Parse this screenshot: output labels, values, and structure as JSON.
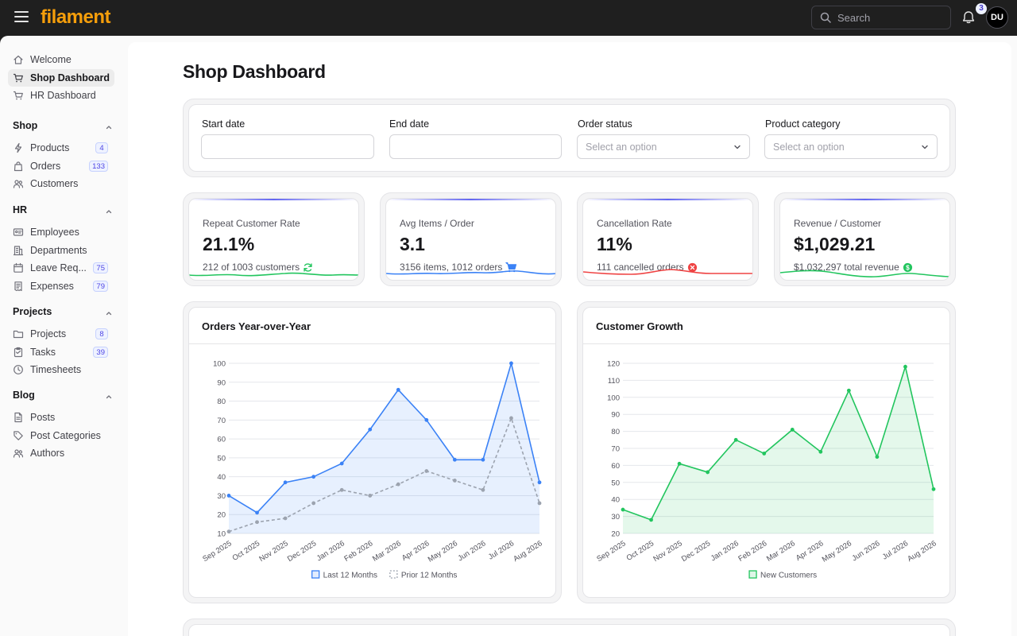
{
  "app": {
    "logo": "filament"
  },
  "topbar": {
    "search_placeholder": "Search",
    "notifications_count": "3",
    "user_initials": "DU"
  },
  "sidebar": {
    "top_items": [
      {
        "label": "Welcome",
        "icon": "home-icon"
      },
      {
        "label": "Shop Dashboard",
        "icon": "cart-icon",
        "active": true
      },
      {
        "label": "HR Dashboard",
        "icon": "cart-icon"
      }
    ],
    "groups": [
      {
        "title": "Shop",
        "items": [
          {
            "label": "Products",
            "icon": "bolt-icon",
            "count": "4"
          },
          {
            "label": "Orders",
            "icon": "bag-icon",
            "count": "133"
          },
          {
            "label": "Customers",
            "icon": "users-icon"
          }
        ]
      },
      {
        "title": "HR",
        "items": [
          {
            "label": "Employees",
            "icon": "id-card-icon"
          },
          {
            "label": "Departments",
            "icon": "building-icon"
          },
          {
            "label": "Leave Req...",
            "icon": "calendar-icon",
            "count": "75"
          },
          {
            "label": "Expenses",
            "icon": "receipt-icon",
            "count": "79"
          }
        ]
      },
      {
        "title": "Projects",
        "items": [
          {
            "label": "Projects",
            "icon": "folder-icon",
            "count": "8"
          },
          {
            "label": "Tasks",
            "icon": "clipboard-icon",
            "count": "39"
          },
          {
            "label": "Timesheets",
            "icon": "clock-icon"
          }
        ]
      },
      {
        "title": "Blog",
        "items": [
          {
            "label": "Posts",
            "icon": "document-icon"
          },
          {
            "label": "Post Categories",
            "icon": "tag-icon"
          },
          {
            "label": "Authors",
            "icon": "users-icon"
          }
        ]
      }
    ]
  },
  "page": {
    "title": "Shop Dashboard"
  },
  "filters": {
    "start_date_label": "Start date",
    "end_date_label": "End date",
    "order_status_label": "Order status",
    "order_status_placeholder": "Select an option",
    "product_category_label": "Product category",
    "product_category_placeholder": "Select an option"
  },
  "stats": [
    {
      "label": "Repeat Customer Rate",
      "value": "21.1%",
      "desc": "212 of 1003 customers",
      "icon": "refresh-icon",
      "color": "#22c55e"
    },
    {
      "label": "Avg Items / Order",
      "value": "3.1",
      "desc": "3156 items, 1012 orders",
      "icon": "cart-icon",
      "color": "#3b82f6"
    },
    {
      "label": "Cancellation Rate",
      "value": "11%",
      "desc": "111 cancelled orders",
      "icon": "x-circle-icon",
      "color": "#ef4444"
    },
    {
      "label": "Revenue / Customer",
      "value": "$1,029.21",
      "desc": "$1,032,297 total revenue",
      "icon": "dollar-icon",
      "color": "#22c55e"
    }
  ],
  "charts": {
    "orders_title": "Orders Year-over-Year",
    "growth_title": "Customer Growth"
  },
  "chart_data": [
    {
      "type": "line",
      "title": "Orders Year-over-Year",
      "x": [
        "Sep 2025",
        "Oct 2025",
        "Nov 2025",
        "Dec 2025",
        "Jan 2026",
        "Feb 2026",
        "Mar 2026",
        "Apr 2026",
        "May 2026",
        "Jun 2026",
        "Jul 2026",
        "Aug 2026"
      ],
      "ylim": [
        10,
        100
      ],
      "yticks": [
        10,
        20,
        30,
        40,
        50,
        60,
        70,
        80,
        90,
        100
      ],
      "series": [
        {
          "name": "Last 12 Months",
          "color": "#3b82f6",
          "fill": true,
          "dashed": false,
          "values": [
            30,
            21,
            37,
            40,
            47,
            65,
            86,
            70,
            49,
            49,
            100,
            37
          ]
        },
        {
          "name": "Prior 12 Months",
          "color": "#9ca3af",
          "fill": false,
          "dashed": true,
          "values": [
            11,
            16,
            18,
            26,
            33,
            30,
            36,
            43,
            38,
            33,
            71,
            26
          ]
        }
      ],
      "grid": true,
      "legend": "bottom"
    },
    {
      "type": "area",
      "title": "Customer Growth",
      "x": [
        "Sep 2025",
        "Oct 2025",
        "Nov 2025",
        "Dec 2025",
        "Jan 2026",
        "Feb 2026",
        "Mar 2026",
        "Apr 2026",
        "May 2026",
        "Jun 2026",
        "Jul 2026",
        "Aug 2026"
      ],
      "ylim": [
        20,
        120
      ],
      "yticks": [
        20,
        30,
        40,
        50,
        60,
        70,
        80,
        90,
        100,
        110,
        120
      ],
      "series": [
        {
          "name": "New Customers",
          "color": "#22c55e",
          "fill": true,
          "dashed": false,
          "values": [
            34,
            28,
            61,
            56,
            75,
            67,
            81,
            68,
            104,
            65,
            118,
            46
          ]
        }
      ],
      "grid": true,
      "legend": "bottom"
    }
  ]
}
